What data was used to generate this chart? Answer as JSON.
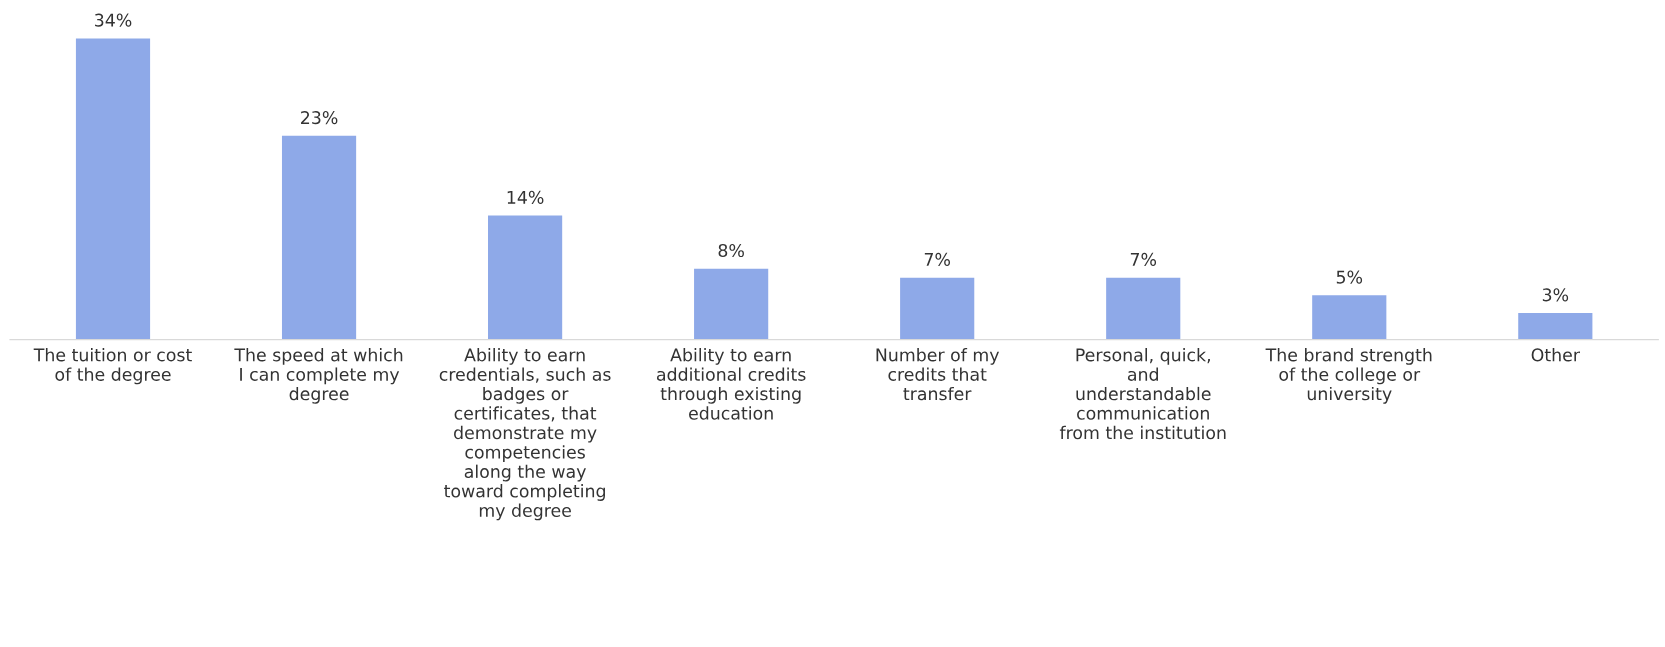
{
  "chart_data": {
    "type": "bar",
    "categories": [
      "The tuition or cost\nof the degree",
      "The speed at which\nI can complete my\ndegree",
      "Ability to earn\ncredentials, such as\nbadges or\ncertificates, that\ndemonstrate my\ncompetencies\nalong the way\ntoward completing\nmy degree",
      "Ability to earn\nadditional credits\nthrough existing\neducation",
      "Number of my\ncredits that\ntransfer",
      "Personal, quick,\nand\nunderstandable\ncommunication\nfrom the institution",
      "The brand strength\nof the college or\nuniversity",
      "Other"
    ],
    "values": [
      34,
      23,
      14,
      8,
      7,
      7,
      5,
      3
    ],
    "value_labels": [
      "34%",
      "23%",
      "14%",
      "8%",
      "7%",
      "7%",
      "5%",
      "3%"
    ],
    "color": "#8ea9e8",
    "grid": false,
    "legend": false
  }
}
